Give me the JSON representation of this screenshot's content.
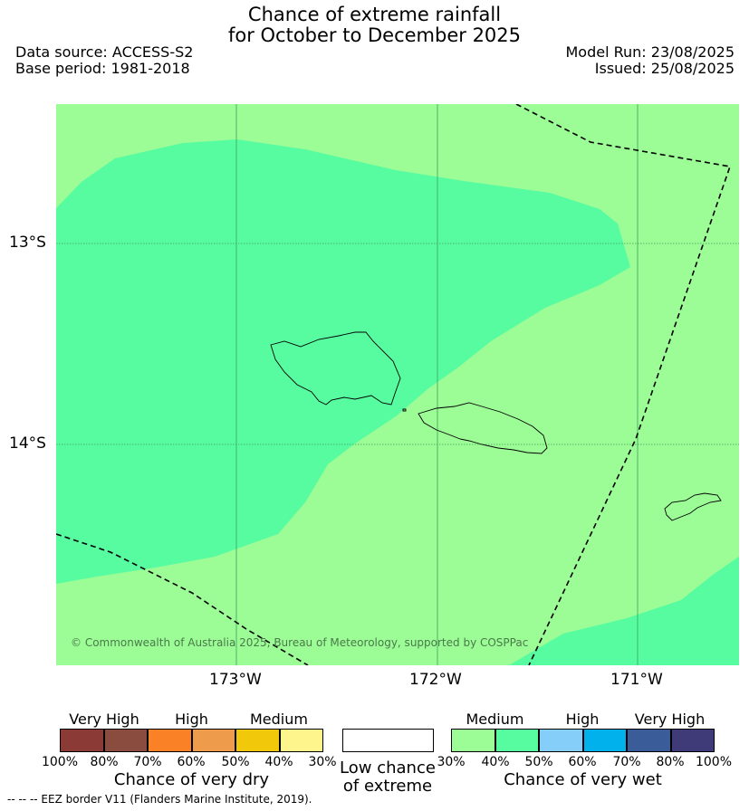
{
  "title": {
    "line1": "Chance of extreme rainfall",
    "line2": "for October to December 2025"
  },
  "header": {
    "data_source": "Data source: ACCESS-S2",
    "base_period": "Base period: 1981-2018",
    "model_run": "Model Run: 23/08/2025",
    "issued": "Issued: 25/08/2025"
  },
  "map": {
    "latitude_labels": [
      "13°S",
      "14°S"
    ],
    "longitude_labels": [
      "173°W",
      "172°W",
      "171°W"
    ],
    "copyright": "© Commonwealth of Australia 2025, Bureau of Meteorology, supported by COSPPac",
    "colors": {
      "medium_wet": "#9cfc96",
      "high_wet_40": "#57fca0",
      "coast": "#000000",
      "eez": "#000000",
      "grid": "#3aa05a"
    }
  },
  "legend": {
    "dry": {
      "categories": [
        "Very High",
        "High",
        "Medium"
      ],
      "colors": [
        "#8b3a36",
        "#8a4c3e",
        "#fb8127",
        "#ef9b4c",
        "#f2c80a",
        "#fef68c"
      ],
      "ticks": [
        "100%",
        "80%",
        "70%",
        "60%",
        "50%",
        "40%",
        "30%"
      ],
      "title": "Chance of very dry"
    },
    "low": {
      "title_line1": "Low chance",
      "title_line2": "of extreme",
      "color": "#ffffff"
    },
    "wet": {
      "categories": [
        "Medium",
        "High",
        "Very High"
      ],
      "colors": [
        "#9cfc96",
        "#57fca0",
        "#86cefa",
        "#00b1ec",
        "#3a5d9a",
        "#3f3b78"
      ],
      "ticks": [
        "30%",
        "40%",
        "50%",
        "60%",
        "70%",
        "80%",
        "100%"
      ],
      "title": "Chance of very wet"
    }
  },
  "footnote": "-- -- -- EEZ border V11 (Flanders Marine Institute, 2019)."
}
